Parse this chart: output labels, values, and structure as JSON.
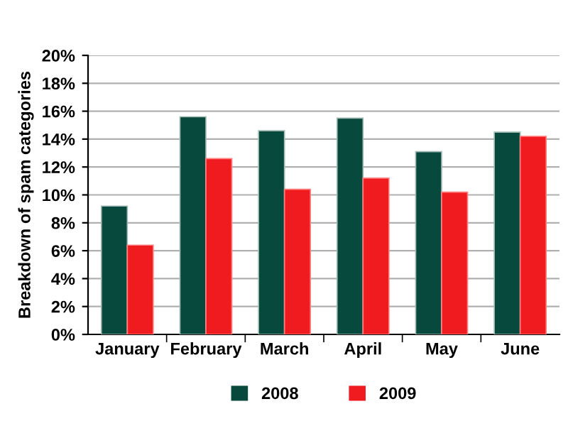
{
  "chart_data": {
    "type": "bar",
    "ylabel": "Breakdown of spam categories",
    "categories": [
      "January",
      "February",
      "March",
      "April",
      "May",
      "June"
    ],
    "series": [
      {
        "name": "2008",
        "color": "#07493c",
        "values": [
          9.2,
          15.6,
          14.6,
          15.5,
          13.1,
          14.5
        ]
      },
      {
        "name": "2009",
        "color": "#f01b1e",
        "values": [
          6.4,
          12.6,
          10.4,
          11.2,
          10.2,
          14.2
        ]
      }
    ],
    "ylim": [
      0,
      20
    ],
    "yticks": [
      {
        "value": 0,
        "label": "0%"
      },
      {
        "value": 2,
        "label": "2%"
      },
      {
        "value": 4,
        "label": "4%"
      },
      {
        "value": 6,
        "label": "6%"
      },
      {
        "value": 8,
        "label": "8%"
      },
      {
        "value": 10,
        "label": "10%"
      },
      {
        "value": 12,
        "label": "12%"
      },
      {
        "value": 14,
        "label": "14%"
      },
      {
        "value": 16,
        "label": "16%"
      },
      {
        "value": 18,
        "label": "18%"
      },
      {
        "value": 20,
        "label": "20%"
      }
    ],
    "grid": "y",
    "legend": "bottom"
  }
}
